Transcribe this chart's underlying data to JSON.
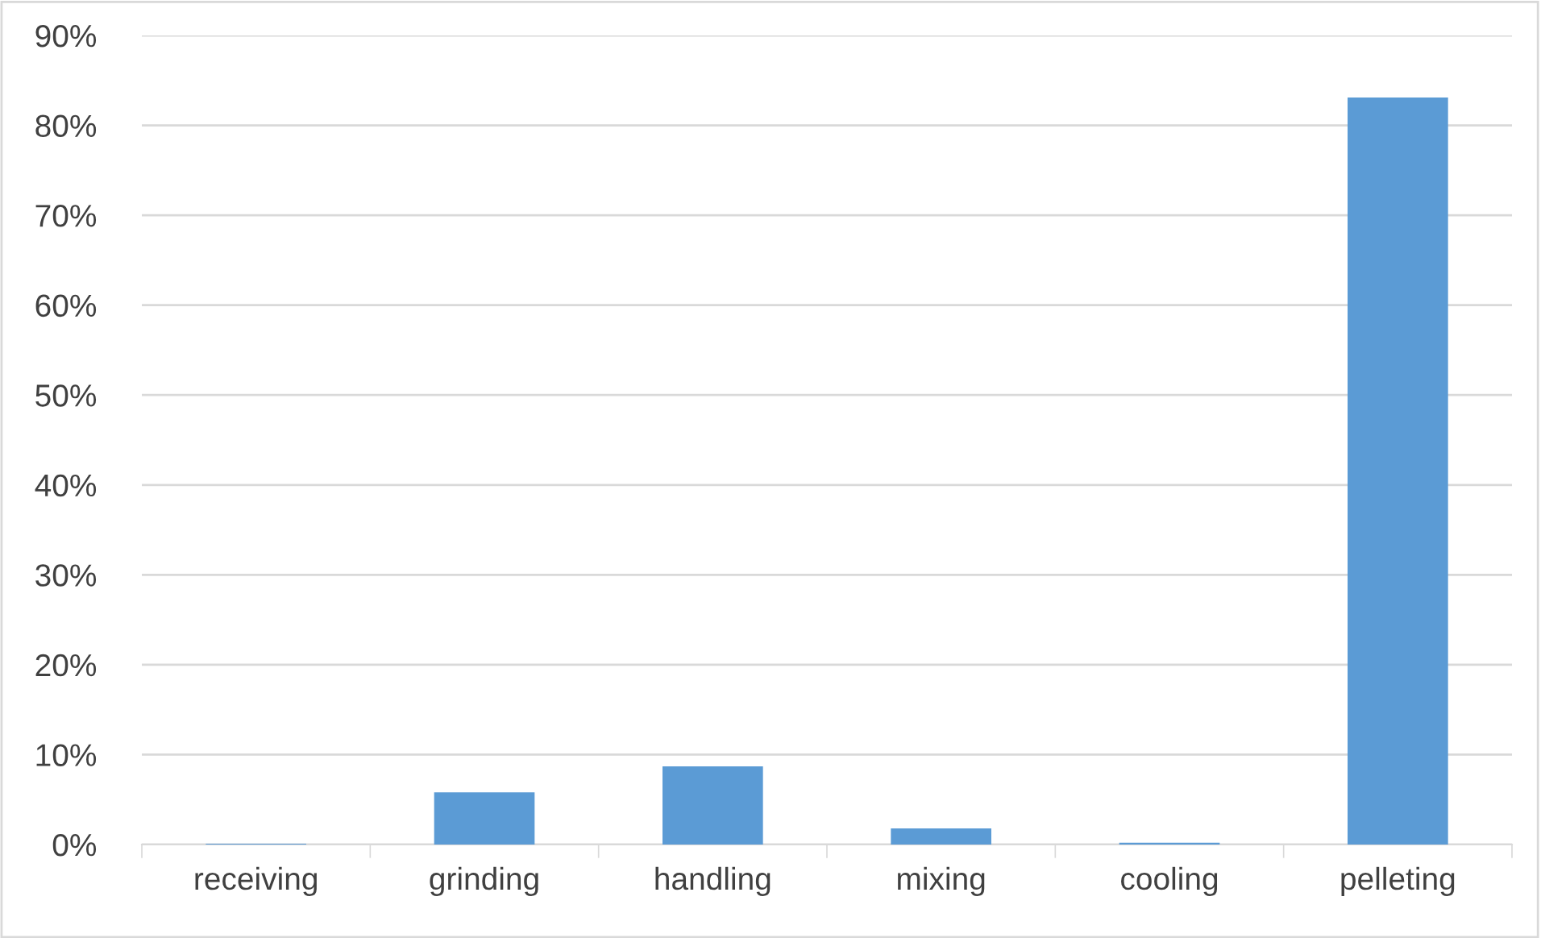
{
  "chart_data": {
    "type": "bar",
    "categories": [
      "receiving",
      "grinding",
      "handling",
      "mixing",
      "cooling",
      "pelleting"
    ],
    "values": [
      0.1,
      5.8,
      8.7,
      1.8,
      0.2,
      83.1
    ],
    "color": "#5b9bd5",
    "ylim": [
      0,
      90
    ],
    "yticks": [
      {
        "value": 0,
        "label": "0%"
      },
      {
        "value": 10,
        "label": "10%"
      },
      {
        "value": 20,
        "label": "20%"
      },
      {
        "value": 30,
        "label": "30%"
      },
      {
        "value": 40,
        "label": "40%"
      },
      {
        "value": 50,
        "label": "50%"
      },
      {
        "value": 60,
        "label": "60%"
      },
      {
        "value": 70,
        "label": "70%"
      },
      {
        "value": 80,
        "label": "80%"
      },
      {
        "value": 90,
        "label": "90%"
      }
    ],
    "grid": "y"
  }
}
